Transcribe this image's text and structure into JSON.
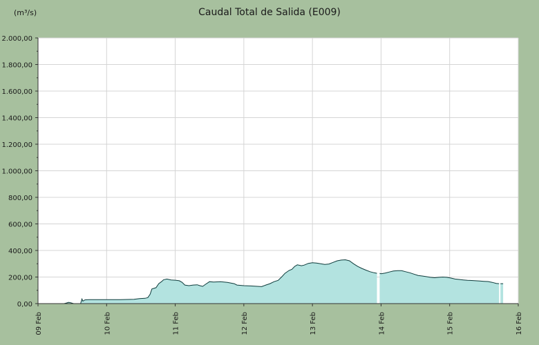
{
  "chart_data": {
    "type": "area",
    "title": "Caudal Total de Salida  (E009)",
    "ylabel": "(m³/s)",
    "xlabel": "",
    "ylim": [
      0,
      2000
    ],
    "xlim": [
      "09 Feb",
      "16 Feb"
    ],
    "y_ticks": [
      0,
      200,
      400,
      600,
      800,
      1000,
      1200,
      1400,
      1600,
      1800,
      2000
    ],
    "y_tick_labels": [
      "0,00",
      "200,00",
      "400,00",
      "600,00",
      "800,00",
      "1.000,00",
      "1.200,00",
      "1.400,00",
      "1.600,00",
      "1.800,00",
      "2.000,00"
    ],
    "x_tick_labels": [
      "09 Feb",
      "10 Feb",
      "11 Feb",
      "12 Feb",
      "13 Feb",
      "14 Feb",
      "15 Feb",
      "16 Feb"
    ],
    "grid": true,
    "colors": {
      "background": "#a7c09e",
      "plot_background": "#ffffff",
      "fill": "#b3e3e0",
      "line": "#0d3b3b",
      "grid": "#d4d4d4"
    },
    "series": [
      {
        "values": [
          [
            "09 Feb 09:07",
            0
          ],
          [
            "09 Feb 10:05",
            5
          ],
          [
            "09 Feb 10:43",
            10
          ],
          [
            "09 Feb 11:31",
            6
          ],
          [
            "09 Feb 12:29",
            0
          ],
          [
            "09 Feb 14:53",
            0
          ],
          [
            "09 Feb 15:22",
            35
          ],
          [
            "09 Feb 15:41",
            18
          ],
          [
            "09 Feb 16:24",
            28
          ],
          [
            "09 Feb 18:00",
            30
          ],
          [
            "10 Feb 00:00",
            30
          ],
          [
            "10 Feb 04:48",
            30
          ],
          [
            "10 Feb 09:36",
            32
          ],
          [
            "10 Feb 11:31",
            38
          ],
          [
            "10 Feb 13:26",
            40
          ],
          [
            "10 Feb 14:24",
            45
          ],
          [
            "10 Feb 15:12",
            70
          ],
          [
            "10 Feb 15:50",
            110
          ],
          [
            "10 Feb 17:17",
            120
          ],
          [
            "10 Feb 18:14",
            150
          ],
          [
            "10 Feb 19:12",
            165
          ],
          [
            "10 Feb 19:55",
            180
          ],
          [
            "10 Feb 21:07",
            185
          ],
          [
            "10 Feb 22:34",
            178
          ],
          [
            "11 Feb 00:00",
            176
          ],
          [
            "11 Feb 01:26",
            172
          ],
          [
            "11 Feb 02:24",
            160
          ],
          [
            "11 Feb 03:22",
            140
          ],
          [
            "11 Feb 04:48",
            135
          ],
          [
            "11 Feb 06:14",
            140
          ],
          [
            "11 Feb 07:41",
            142
          ],
          [
            "11 Feb 08:38",
            135
          ],
          [
            "11 Feb 09:36",
            130
          ],
          [
            "11 Feb 10:34",
            145
          ],
          [
            "11 Feb 12:00",
            165
          ],
          [
            "11 Feb 13:26",
            162
          ],
          [
            "11 Feb 15:50",
            165
          ],
          [
            "11 Feb 18:14",
            160
          ],
          [
            "11 Feb 20:38",
            150
          ],
          [
            "11 Feb 21:36",
            140
          ],
          [
            "12 Feb 00:00",
            135
          ],
          [
            "12 Feb 02:24",
            133
          ],
          [
            "12 Feb 04:48",
            130
          ],
          [
            "12 Feb 06:14",
            128
          ],
          [
            "12 Feb 07:41",
            140
          ],
          [
            "12 Feb 09:07",
            150
          ],
          [
            "12 Feb 10:34",
            165
          ],
          [
            "12 Feb 12:00",
            175
          ],
          [
            "12 Feb 13:26",
            205
          ],
          [
            "12 Feb 14:24",
            228
          ],
          [
            "12 Feb 15:50",
            250
          ],
          [
            "12 Feb 16:48",
            258
          ],
          [
            "12 Feb 17:46",
            280
          ],
          [
            "12 Feb 18:43",
            292
          ],
          [
            "12 Feb 20:10",
            285
          ],
          [
            "12 Feb 21:07",
            290
          ],
          [
            "12 Feb 22:34",
            303
          ],
          [
            "13 Feb 00:00",
            308
          ],
          [
            "13 Feb 01:26",
            305
          ],
          [
            "13 Feb 02:53",
            300
          ],
          [
            "13 Feb 04:19",
            295
          ],
          [
            "13 Feb 05:46",
            298
          ],
          [
            "13 Feb 07:12",
            310
          ],
          [
            "13 Feb 08:38",
            322
          ],
          [
            "13 Feb 10:05",
            328
          ],
          [
            "13 Feb 11:31",
            330
          ],
          [
            "13 Feb 12:58",
            322
          ],
          [
            "13 Feb 14:24",
            300
          ],
          [
            "13 Feb 15:50",
            280
          ],
          [
            "13 Feb 17:17",
            265
          ],
          [
            "13 Feb 18:43",
            252
          ],
          [
            "13 Feb 20:10",
            240
          ],
          [
            "13 Feb 21:36",
            232
          ],
          [
            "13 Feb 22:34",
            228
          ],
          null,
          [
            "13 Feb 23:31",
            228
          ],
          [
            "14 Feb 00:00",
            225
          ],
          [
            "14 Feb 01:26",
            230
          ],
          [
            "14 Feb 02:53",
            238
          ],
          [
            "14 Feb 04:19",
            245
          ],
          [
            "14 Feb 05:46",
            248
          ],
          [
            "14 Feb 07:12",
            248
          ],
          [
            "14 Feb 08:38",
            240
          ],
          [
            "14 Feb 10:05",
            232
          ],
          [
            "14 Feb 11:31",
            222
          ],
          [
            "14 Feb 12:58",
            212
          ],
          [
            "14 Feb 14:24",
            208
          ],
          [
            "14 Feb 15:50",
            203
          ],
          [
            "14 Feb 17:17",
            198
          ],
          [
            "14 Feb 18:43",
            195
          ],
          [
            "14 Feb 20:10",
            198
          ],
          [
            "14 Feb 21:36",
            200
          ],
          [
            "14 Feb 23:02",
            198
          ],
          [
            "15 Feb 00:29",
            192
          ],
          [
            "15 Feb 01:55",
            185
          ],
          [
            "15 Feb 03:22",
            182
          ],
          [
            "15 Feb 04:48",
            178
          ],
          [
            "15 Feb 06:14",
            175
          ],
          [
            "15 Feb 07:41",
            174
          ],
          [
            "15 Feb 09:07",
            172
          ],
          [
            "15 Feb 10:34",
            170
          ],
          [
            "15 Feb 12:00",
            168
          ],
          [
            "15 Feb 13:26",
            166
          ],
          [
            "15 Feb 14:53",
            160
          ],
          [
            "15 Feb 16:19",
            152
          ],
          [
            "15 Feb 17:17",
            150
          ],
          null,
          [
            "15 Feb 17:46",
            150
          ],
          [
            "15 Feb 18:43",
            150
          ]
        ]
      }
    ]
  }
}
